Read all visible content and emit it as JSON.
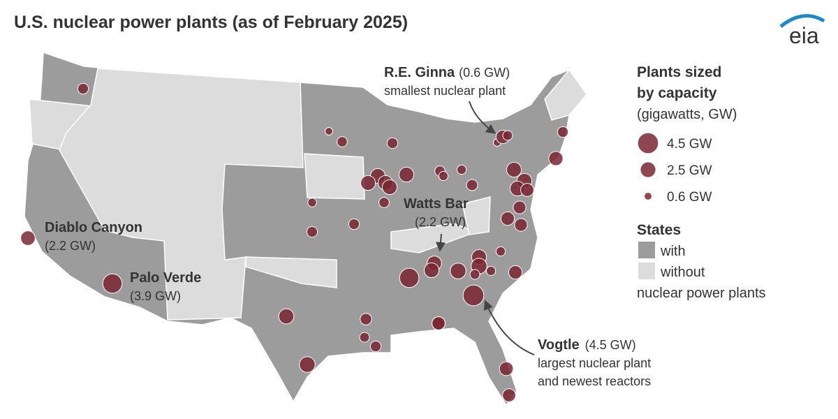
{
  "header": {
    "title": "U.S. nuclear power plants (as of February 2025)",
    "logo": "eia"
  },
  "legend": {
    "title": [
      "Plants sized",
      "by capacity"
    ],
    "subtitle": "(gigawatts, GW)",
    "sizes": [
      {
        "value": 4.5,
        "label": "4.5 GW"
      },
      {
        "value": 2.5,
        "label": "2.5 GW"
      },
      {
        "value": 0.6,
        "label": "0.6 GW"
      }
    ],
    "states": {
      "title": "States",
      "with": "with",
      "without": "without",
      "note": "nuclear power plants"
    }
  },
  "annotations": [
    {
      "name": "R.E. Ginna",
      "capacity": "(0.6 GW)",
      "note": "smallest nuclear plant"
    },
    {
      "name": "Watts Bar",
      "capacity": "(2.2 GW)"
    },
    {
      "name": "Diablo Canyon",
      "capacity": "(2.2 GW)"
    },
    {
      "name": "Palo Verde",
      "capacity": "(3.9 GW)"
    },
    {
      "name": "Vogtle",
      "capacity": "(4.5 GW)",
      "note": "largest nuclear plant",
      "note2": "and newest reactors"
    }
  ],
  "plants": {
    "capacity_gw": [
      1.2,
      2.2,
      3.9,
      2.4,
      2.6,
      0.6,
      1.1,
      1.2,
      2.3,
      2.3,
      2.3,
      2.3,
      1.1,
      2.3,
      1.1,
      0.9,
      0.9,
      0.8,
      1.2,
      1.2,
      1.3,
      0.6,
      1.9,
      1.0,
      1.2,
      2.1,
      2.3,
      2.3,
      2.3,
      1.8,
      1.7,
      1.9,
      1.7,
      0.9,
      1.9,
      2.3,
      2.6,
      1.0,
      0.9,
      2.6,
      4.5,
      2.2,
      2.3,
      3.9,
      1.8,
      1.8,
      1.4,
      1.0,
      1.2,
      1.8,
      2.0
    ]
  }
}
